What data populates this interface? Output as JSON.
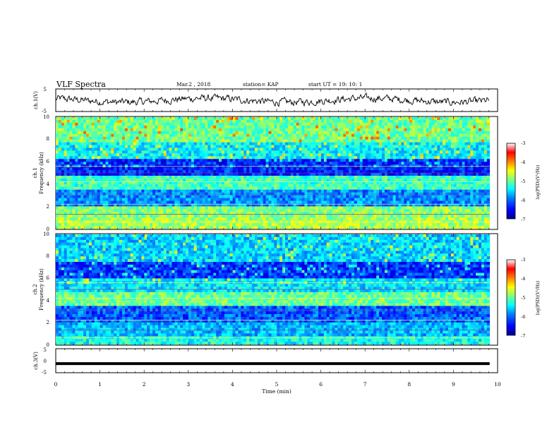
{
  "header": {
    "title": "VLF Spectra",
    "date": "Mar.2 , 2018",
    "station": "station= KAP",
    "start": "start UT = 19: 10: 1"
  },
  "chart_data": [
    {
      "type": "line",
      "ylabel": "ch.1(V)",
      "ylim": [
        -5,
        5
      ],
      "yticks": [
        5,
        -5
      ],
      "xlim": [
        0,
        10
      ],
      "note": "noisy waveform, roughly -2 to 2 V",
      "series": [
        {
          "values": [
            0.8,
            -0.5,
            1.2,
            0.3,
            -1.1,
            0.9,
            0.2,
            -0.8,
            1.5,
            0.4,
            -0.6,
            1.0,
            0.1,
            -1.3,
            0.7,
            0.5,
            -0.4,
            1.1,
            -0.2,
            0.6
          ]
        }
      ]
    },
    {
      "type": "heatmap",
      "ylabel": "ch.1",
      "ylabel2": "Frequency (kHz)",
      "ylim": [
        0,
        10
      ],
      "yticks": [
        "0",
        "2",
        "4",
        "6",
        "8",
        "10"
      ],
      "xlim": [
        0,
        10
      ],
      "colorbar": {
        "label": "log(PSD)(V²/Hz)",
        "ticks": [
          "-3",
          "-4",
          "-5",
          "-6",
          "-7"
        ],
        "range": [
          -7,
          -3
        ]
      }
    },
    {
      "type": "heatmap",
      "ylabel": "ch.2",
      "ylabel2": "Frequency (kHz)",
      "ylim": [
        0,
        10
      ],
      "yticks": [
        "0",
        "2",
        "4",
        "6",
        "8",
        "10"
      ],
      "xlim": [
        0,
        10
      ],
      "colorbar": {
        "label": "log(PSD)(V²/Hz)",
        "ticks": [
          "-3",
          "-4",
          "-5",
          "-6",
          "-7"
        ],
        "range": [
          -7,
          -3
        ]
      }
    },
    {
      "type": "line",
      "ylabel": "ch.3(V)",
      "ylim": [
        -5,
        5
      ],
      "yticks": [
        "5",
        "0",
        "-5"
      ],
      "xlim": [
        0,
        10
      ],
      "series": [
        {
          "values": [
            -1.2,
            -1.2
          ]
        }
      ]
    }
  ],
  "xaxis": {
    "label": "Time (min)",
    "ticks": [
      "0",
      "1",
      "2",
      "3",
      "4",
      "5",
      "6",
      "7",
      "8",
      "9",
      "10"
    ]
  },
  "colors": {
    "colormap": [
      "#00008f",
      "#0000ff",
      "#0080ff",
      "#00ffff",
      "#80ff80",
      "#ffff00",
      "#ff8000",
      "#ff0000",
      "#ffffff"
    ]
  }
}
